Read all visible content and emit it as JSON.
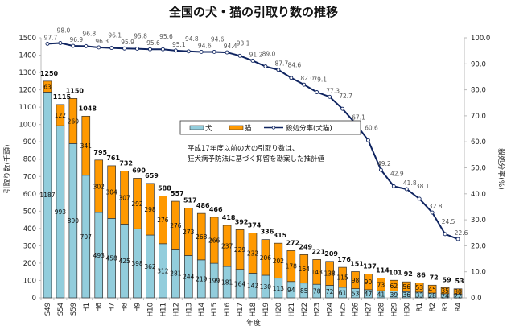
{
  "chart_data": {
    "type": "bar",
    "stacked": true,
    "title": "全国の犬・猫の引取り数の推移",
    "xlabel": "年度",
    "ylabel": "引取り数(千頭)",
    "y2label": "殺処分率(%)",
    "ylim": [
      0,
      1500
    ],
    "y2lim": [
      0,
      100
    ],
    "yticks": [
      0,
      100,
      200,
      300,
      400,
      500,
      600,
      700,
      800,
      900,
      1000,
      1100,
      1200,
      1300,
      1400,
      1500
    ],
    "y2ticks": [
      "0.0",
      "10.0",
      "20.0",
      "30.0",
      "40.0",
      "50.0",
      "60.0",
      "70.0",
      "80.0",
      "90.0",
      "100.0"
    ],
    "categories": [
      "S49",
      "S54",
      "S59",
      "H1",
      "H6",
      "H7",
      "H8",
      "H9",
      "H10",
      "H11",
      "H12",
      "H13",
      "H14",
      "H15",
      "H16",
      "H17",
      "H18",
      "H19",
      "H20",
      "H21",
      "H22",
      "H23",
      "H24",
      "H25",
      "H26",
      "H27",
      "H28",
      "H29",
      "H30",
      "R1",
      "R2",
      "R3",
      "R4"
    ],
    "series": [
      {
        "name": "犬",
        "color": "#92CDDC",
        "values": [
          1187,
          993,
          890,
          707,
          493,
          458,
          425,
          398,
          362,
          312,
          281,
          244,
          219,
          199,
          181,
          164,
          142,
          130,
          113,
          94,
          85,
          78,
          72,
          61,
          53,
          47,
          41,
          39,
          36,
          33,
          28,
          24,
          22
        ]
      },
      {
        "name": "猫",
        "color": "#FF9900",
        "values": [
          63,
          122,
          260,
          341,
          302,
          304,
          307,
          292,
          298,
          276,
          276,
          273,
          268,
          266,
          237,
          229,
          232,
          206,
          202,
          178,
          164,
          143,
          138,
          115,
          98,
          90,
          73,
          62,
          56,
          53,
          45,
          35,
          30
        ]
      },
      {
        "name": "殺処分率(犬猫)",
        "type": "line",
        "axis": "right",
        "color": "#0F2460",
        "values": [
          97.7,
          98.0,
          96.9,
          96.8,
          96.3,
          96.1,
          95.9,
          95.8,
          95.6,
          95.6,
          95.1,
          94.8,
          94.6,
          94.6,
          94.4,
          93.1,
          91.2,
          89.0,
          87.7,
          84.6,
          82.0,
          79.1,
          77.3,
          72.7,
          67.1,
          60.6,
          49.2,
          42.9,
          41.8,
          38.1,
          32.8,
          24.5,
          22.6
        ]
      }
    ],
    "totals": [
      1250,
      1115,
      1150,
      1048,
      795,
      761,
      732,
      690,
      659,
      588,
      557,
      517,
      486,
      466,
      418,
      392,
      374,
      336,
      315,
      272,
      249,
      221,
      209,
      176,
      151,
      137,
      114,
      101,
      92,
      86,
      72,
      59,
      53
    ],
    "legend": {
      "position": "center",
      "items": [
        "犬",
        "猫",
        "殺処分率(犬猫)"
      ]
    },
    "annotation": [
      "平成17年度以前の犬の引取り数は、",
      "狂犬病予防法に基づく抑留を勘案した推計値"
    ],
    "grid": false
  }
}
